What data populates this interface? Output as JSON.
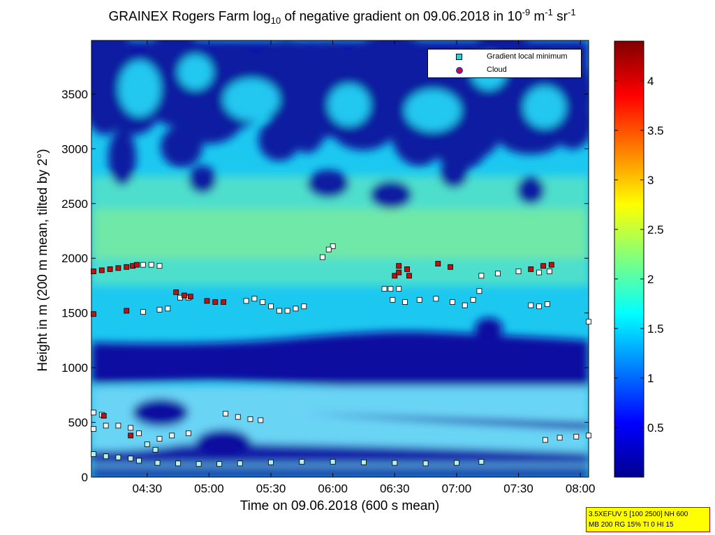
{
  "chart_data": {
    "type": "heatmap",
    "title_main": "GRAINEX Rogers Farm log",
    "title_sub": "10",
    "title_rest1": " of negative gradient on 09.06.2018 in 10",
    "title_sup1": "-9",
    "title_rest2": " m",
    "title_sup2": "-1",
    "title_rest3": " sr",
    "title_sup3": "-1",
    "xlabel": "Time on 09.06.2018 (600 s mean)",
    "ylabel": "Height in m (200 m mean, tilted by 2°)",
    "x_ticks": [
      "04:30",
      "05:00",
      "05:30",
      "06:00",
      "06:30",
      "07:00",
      "07:30",
      "08:00"
    ],
    "x_tick_minutes": [
      270,
      300,
      330,
      360,
      390,
      420,
      450,
      480
    ],
    "xlim_minutes": [
      243,
      484
    ],
    "y_ticks": [
      "0",
      "500",
      "1000",
      "1500",
      "2000",
      "2500",
      "3000",
      "3500"
    ],
    "y_tick_values": [
      0,
      500,
      1000,
      1500,
      2000,
      2500,
      3000,
      3500
    ],
    "ylim": [
      0,
      3990
    ],
    "colorbar_ticks": [
      "0.5",
      "1",
      "1.5",
      "2",
      "2.5",
      "3",
      "3.5",
      "4"
    ],
    "colorbar_values": [
      0.5,
      1,
      1.5,
      2,
      2.5,
      3,
      3.5,
      4
    ],
    "colorbar_range": [
      0,
      4.4
    ],
    "legend": {
      "position": "top-right",
      "entries": [
        "Gradient local minimum",
        "Cloud"
      ]
    },
    "gradient_minimum_series": [
      {
        "x": [
          244,
          250,
          256,
          262,
          266
        ],
        "y": [
          210,
          190,
          180,
          170,
          150
        ]
      },
      {
        "x": [
          275,
          285,
          295,
          305,
          315,
          330,
          345,
          360,
          375,
          390,
          405,
          420,
          432
        ],
        "y": [
          130,
          125,
          120,
          120,
          125,
          135,
          140,
          140,
          135,
          130,
          125,
          130,
          140
        ]
      },
      {
        "x": [
          244,
          250,
          256,
          262,
          266,
          270,
          274
        ],
        "y": [
          440,
          470,
          470,
          450,
          400,
          300,
          250
        ]
      },
      {
        "x": [
          276,
          282,
          290
        ],
        "y": [
          350,
          380,
          400
        ]
      },
      {
        "x": [
          308,
          314,
          320,
          325
        ],
        "y": [
          580,
          550,
          530,
          520
        ]
      },
      {
        "x": [
          244,
          248
        ],
        "y": [
          590,
          570
        ]
      },
      {
        "x": [
          318,
          322,
          326,
          330,
          334,
          338,
          342,
          346
        ],
        "y": [
          1610,
          1630,
          1600,
          1560,
          1520,
          1520,
          1540,
          1560
        ]
      },
      {
        "x": [
          385,
          388,
          392
        ],
        "y": [
          1720,
          1720,
          1720
        ]
      },
      {
        "x": [
          389,
          395,
          402,
          410,
          418,
          424,
          428,
          431
        ],
        "y": [
          1620,
          1600,
          1620,
          1630,
          1600,
          1570,
          1620,
          1700
        ]
      },
      {
        "x": [
          432,
          440,
          450,
          460,
          465
        ],
        "y": [
          1840,
          1860,
          1880,
          1870,
          1880
        ]
      },
      {
        "x": [
          456,
          460,
          464
        ],
        "y": [
          1570,
          1560,
          1580
        ]
      },
      {
        "x": [
          463,
          470,
          478,
          484
        ],
        "y": [
          340,
          360,
          370,
          380
        ]
      },
      {
        "x": [
          268,
          272,
          276
        ],
        "y": [
          1940,
          1940,
          1930
        ]
      },
      {
        "x": [
          276,
          280
        ],
        "y": [
          1530,
          1540
        ]
      },
      {
        "x": [
          268
        ],
        "y": [
          1510
        ]
      },
      {
        "x": [
          286,
          290
        ],
        "y": [
          1640,
          1640
        ]
      },
      {
        "x": [
          355
        ],
        "y": [
          2010
        ]
      },
      {
        "x": [
          360,
          358
        ],
        "y": [
          2110,
          2080
        ]
      },
      {
        "x": [
          484
        ],
        "y": [
          1420
        ]
      }
    ],
    "cloud_series": [
      {
        "x": [
          244,
          248,
          252,
          256,
          260,
          263,
          265
        ],
        "y": [
          1880,
          1890,
          1900,
          1910,
          1920,
          1930,
          1940
        ]
      },
      {
        "x": [
          244
        ],
        "y": [
          1490
        ]
      },
      {
        "x": [
          260
        ],
        "y": [
          1520
        ]
      },
      {
        "x": [
          284,
          288,
          291
        ],
        "y": [
          1690,
          1660,
          1650
        ]
      },
      {
        "x": [
          299,
          303,
          307
        ],
        "y": [
          1610,
          1600,
          1600
        ]
      },
      {
        "x": [
          249
        ],
        "y": [
          560
        ]
      },
      {
        "x": [
          262
        ],
        "y": [
          380
        ]
      },
      {
        "x": [
          390,
          392,
          396,
          397,
          392
        ],
        "y": [
          1840,
          1870,
          1900,
          1840,
          1930
        ]
      },
      {
        "x": [
          411,
          417
        ],
        "y": [
          1950,
          1920
        ]
      },
      {
        "x": [
          456,
          462,
          466
        ],
        "y": [
          1900,
          1930,
          1940
        ]
      }
    ]
  },
  "infobox": {
    "line1": "3.5XEFUV 5 [100 2500] NH 600",
    "line2": "MB 200 RG 15% TI 0 HI 15"
  }
}
